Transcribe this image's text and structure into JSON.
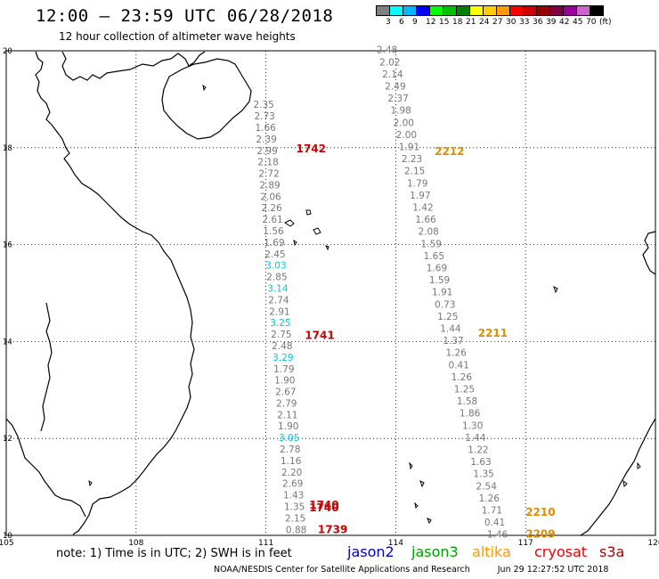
{
  "header": {
    "title": "12:00 – 23:59 UTC 06/28/2018",
    "subtitle": "12 hour collection of altimeter wave heights"
  },
  "colorbar": {
    "colors": [
      "#808080",
      "#00ffff",
      "#00b4ff",
      "#0000ff",
      "#00ff00",
      "#00c000",
      "#008000",
      "#ffff00",
      "#ffcc00",
      "#ff9900",
      "#ff0000",
      "#cc0000",
      "#990000",
      "#800040",
      "#990099",
      "#cc66cc",
      "#000000"
    ],
    "labels": [
      "3",
      "6",
      "9",
      "12",
      "15",
      "18",
      "21",
      "24",
      "27",
      "30",
      "33",
      "36",
      "39",
      "42",
      "45",
      "70",
      "(ft)"
    ]
  },
  "map": {
    "lon_ticks": [
      "105",
      "108",
      "111",
      "114",
      "117",
      "120"
    ],
    "lat_ticks": [
      "20",
      "18",
      "16",
      "14",
      "12",
      "10"
    ],
    "pass_labels": [
      {
        "text": "1742",
        "lon": 111.7,
        "lat": 17.9,
        "color": "#cc0000"
      },
      {
        "text": "2212",
        "lon": 114.9,
        "lat": 17.85,
        "color": "#e08c00"
      },
      {
        "text": "1741",
        "lon": 111.9,
        "lat": 14.05,
        "color": "#cc0000"
      },
      {
        "text": "2211",
        "lon": 115.9,
        "lat": 14.1,
        "color": "#e08c00"
      },
      {
        "text": "1740",
        "lon": 112.0,
        "lat": 10.55,
        "color": "#cc0000"
      },
      {
        "text": "1740",
        "lon": 112.0,
        "lat": 10.5,
        "color": "#cc0000"
      },
      {
        "text": "1739",
        "lon": 112.2,
        "lat": 10.05,
        "color": "#cc0000"
      },
      {
        "text": "2210",
        "lon": 117.0,
        "lat": 10.4,
        "color": "#e08c00"
      },
      {
        "text": "2209",
        "lon": 117.0,
        "lat": 9.95,
        "color": "#e08c00"
      }
    ],
    "track_a": [
      {
        "v": "2.35",
        "c": "#777777"
      },
      {
        "v": "2.73",
        "c": "#777777"
      },
      {
        "v": "1.66",
        "c": "#777777"
      },
      {
        "v": "2.39",
        "c": "#777777"
      },
      {
        "v": "2.99",
        "c": "#777777"
      },
      {
        "v": "2.18",
        "c": "#777777"
      },
      {
        "v": "2.72",
        "c": "#777777"
      },
      {
        "v": "2.89",
        "c": "#777777"
      },
      {
        "v": "2.06",
        "c": "#777777"
      },
      {
        "v": "2.26",
        "c": "#777777"
      },
      {
        "v": "2.61",
        "c": "#777777"
      },
      {
        "v": "1.56",
        "c": "#777777"
      },
      {
        "v": "1.69",
        "c": "#777777"
      },
      {
        "v": "2.45",
        "c": "#777777"
      },
      {
        "v": "3.03",
        "c": "#00c8e8"
      },
      {
        "v": "2.85",
        "c": "#777777"
      },
      {
        "v": "3.14",
        "c": "#00c8e8"
      },
      {
        "v": "2.74",
        "c": "#777777"
      },
      {
        "v": "2.91",
        "c": "#777777"
      },
      {
        "v": "3.25",
        "c": "#00c8e8"
      },
      {
        "v": "2.75",
        "c": "#777777"
      },
      {
        "v": "2.48",
        "c": "#777777"
      },
      {
        "v": "3.29",
        "c": "#00c8e8"
      },
      {
        "v": "1.79",
        "c": "#777777"
      },
      {
        "v": "1.90",
        "c": "#777777"
      },
      {
        "v": "2.67",
        "c": "#777777"
      },
      {
        "v": "2.79",
        "c": "#777777"
      },
      {
        "v": "2.11",
        "c": "#777777"
      },
      {
        "v": "1.90",
        "c": "#777777"
      },
      {
        "v": "3.05",
        "c": "#00c8e8"
      },
      {
        "v": "2.78",
        "c": "#777777"
      },
      {
        "v": "1.16",
        "c": "#777777"
      },
      {
        "v": "2.20",
        "c": "#777777"
      },
      {
        "v": "2.69",
        "c": "#777777"
      },
      {
        "v": "1.43",
        "c": "#777777"
      },
      {
        "v": "1.35",
        "c": "#777777"
      },
      {
        "v": "2.15",
        "c": "#777777"
      },
      {
        "v": "0.88",
        "c": "#777777"
      }
    ],
    "track_b": [
      {
        "v": "2.48",
        "c": "#777777"
      },
      {
        "v": "2.02",
        "c": "#777777"
      },
      {
        "v": "2.14",
        "c": "#777777"
      },
      {
        "v": "2.49",
        "c": "#777777"
      },
      {
        "v": "2.37",
        "c": "#777777"
      },
      {
        "v": "1.98",
        "c": "#777777"
      },
      {
        "v": "2.00",
        "c": "#777777"
      },
      {
        "v": "2.00",
        "c": "#777777"
      },
      {
        "v": "1.91",
        "c": "#777777"
      },
      {
        "v": "2.23",
        "c": "#777777"
      },
      {
        "v": "2.15",
        "c": "#777777"
      },
      {
        "v": "1.79",
        "c": "#777777"
      },
      {
        "v": "1.97",
        "c": "#777777"
      },
      {
        "v": "1.42",
        "c": "#777777"
      },
      {
        "v": "1.66",
        "c": "#777777"
      },
      {
        "v": "2.08",
        "c": "#777777"
      },
      {
        "v": "1.59",
        "c": "#777777"
      },
      {
        "v": "1.65",
        "c": "#777777"
      },
      {
        "v": "1.69",
        "c": "#777777"
      },
      {
        "v": "1.59",
        "c": "#777777"
      },
      {
        "v": "1.91",
        "c": "#777777"
      },
      {
        "v": "0.73",
        "c": "#777777"
      },
      {
        "v": "1.25",
        "c": "#777777"
      },
      {
        "v": "1.44",
        "c": "#777777"
      },
      {
        "v": "1.37",
        "c": "#777777"
      },
      {
        "v": "1.26",
        "c": "#777777"
      },
      {
        "v": "0.41",
        "c": "#777777"
      },
      {
        "v": "1.26",
        "c": "#777777"
      },
      {
        "v": "1.25",
        "c": "#777777"
      },
      {
        "v": "1.58",
        "c": "#777777"
      },
      {
        "v": "1.86",
        "c": "#777777"
      },
      {
        "v": "1.30",
        "c": "#777777"
      },
      {
        "v": "1.44",
        "c": "#777777"
      },
      {
        "v": "1.22",
        "c": "#777777"
      },
      {
        "v": "1.63",
        "c": "#777777"
      },
      {
        "v": "1.35",
        "c": "#777777"
      },
      {
        "v": "2.54",
        "c": "#777777"
      },
      {
        "v": "1.26",
        "c": "#777777"
      },
      {
        "v": "1.71",
        "c": "#777777"
      },
      {
        "v": "0.41",
        "c": "#777777"
      },
      {
        "v": "1.46",
        "c": "#777777"
      }
    ]
  },
  "footer": {
    "note": "note: 1) Time is in UTC; 2) SWH is in feet",
    "legend": [
      {
        "name": "jason2",
        "color": "#0000cc"
      },
      {
        "name": "jason3",
        "color": "#00a000"
      },
      {
        "name": "altika",
        "color": "#ff9900"
      },
      {
        "name": "cryosat",
        "color": "#ee0000"
      },
      {
        "name": "s3a",
        "color": "#aa0000"
      }
    ],
    "credit": "NOAA/NESDIS Center for Satellite Applications and Research",
    "timestamp": "Jun 29 12:27:52 UTC 2018"
  }
}
